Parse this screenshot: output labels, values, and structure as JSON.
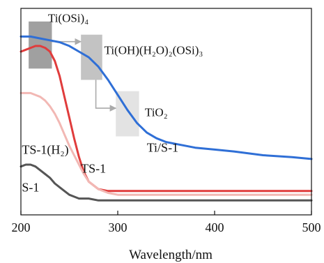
{
  "chart_data": {
    "type": "line",
    "title": "",
    "xlabel": "Wavelength/nm",
    "ylabel": "",
    "xlim": [
      200,
      500
    ],
    "ylim": [
      0,
      1
    ],
    "xticks": [
      200,
      300,
      400,
      500
    ],
    "y_axis_shown": false,
    "grid": false,
    "series": [
      {
        "name": "Ti/S-1",
        "color": "#2f6fd6",
        "label_at": [
          330,
          0.29
        ],
        "x": [
          200,
          210,
          220,
          230,
          240,
          250,
          260,
          270,
          280,
          290,
          300,
          310,
          320,
          330,
          340,
          350,
          360,
          380,
          400,
          420,
          450,
          480,
          500
        ],
        "y": [
          0.88,
          0.88,
          0.87,
          0.86,
          0.85,
          0.83,
          0.8,
          0.77,
          0.72,
          0.65,
          0.57,
          0.49,
          0.42,
          0.37,
          0.34,
          0.32,
          0.31,
          0.29,
          0.28,
          0.27,
          0.25,
          0.24,
          0.23
        ]
      },
      {
        "name": "TS-1",
        "color": "#e03c3c",
        "label_at": [
          262,
          0.18
        ],
        "x": [
          200,
          205,
          210,
          215,
          220,
          225,
          230,
          235,
          240,
          245,
          250,
          255,
          260,
          265,
          270,
          280,
          290,
          300,
          350,
          400,
          450,
          500
        ],
        "y": [
          0.8,
          0.81,
          0.82,
          0.83,
          0.83,
          0.82,
          0.8,
          0.75,
          0.67,
          0.56,
          0.45,
          0.34,
          0.24,
          0.16,
          0.11,
          0.07,
          0.06,
          0.06,
          0.06,
          0.06,
          0.06,
          0.06
        ]
      },
      {
        "name": "TS-1(H₂)",
        "color": "#f2b8b4",
        "label_at": [
          201,
          0.28
        ],
        "x": [
          200,
          205,
          210,
          215,
          220,
          225,
          230,
          235,
          240,
          245,
          250,
          255,
          260,
          265,
          270,
          280,
          290,
          300,
          350,
          400,
          450,
          500
        ],
        "y": [
          0.58,
          0.58,
          0.58,
          0.57,
          0.56,
          0.54,
          0.51,
          0.47,
          0.42,
          0.36,
          0.3,
          0.25,
          0.2,
          0.15,
          0.11,
          0.07,
          0.05,
          0.04,
          0.04,
          0.04,
          0.04,
          0.04
        ]
      },
      {
        "name": "S-1",
        "color": "#555555",
        "label_at": [
          201,
          0.08
        ],
        "x": [
          200,
          205,
          210,
          215,
          220,
          225,
          230,
          235,
          240,
          245,
          250,
          255,
          260,
          270,
          280,
          300,
          350,
          400,
          450,
          500
        ],
        "y": [
          0.19,
          0.2,
          0.2,
          0.19,
          0.17,
          0.15,
          0.13,
          0.1,
          0.08,
          0.06,
          0.04,
          0.03,
          0.02,
          0.02,
          0.01,
          0.01,
          0.01,
          0.01,
          0.01,
          0.01
        ]
      }
    ],
    "annotations": [
      {
        "text": "Ti(OSi)₄",
        "x": [
          208,
          232
        ],
        "y": [
          0.71,
          0.96
        ],
        "fill": "#8f8f8f",
        "label_at": [
          228,
          0.98
        ]
      },
      {
        "text": "Ti(OH)(H₂O)₂(OSi)₃",
        "x": [
          262,
          284
        ],
        "y": [
          0.65,
          0.89
        ],
        "fill": "#b8b8b8",
        "label_at": [
          286,
          0.81
        ]
      },
      {
        "text": "TiO₂",
        "x": [
          298,
          322
        ],
        "y": [
          0.35,
          0.59
        ],
        "fill": "#dedede",
        "label_at": [
          328,
          0.48
        ]
      }
    ]
  }
}
